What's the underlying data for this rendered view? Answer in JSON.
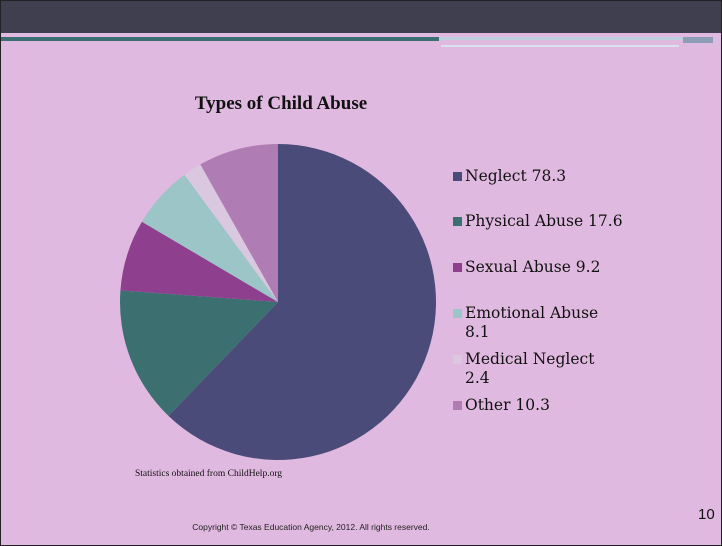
{
  "slide": {
    "title": "Types of Child Abuse",
    "source": "Statistics obtained from ChildHelp.org",
    "copyright": "Copyright © Texas Education Agency, 2012. All rights reserved.",
    "page_number": "10",
    "background_color": "#e0b9e0",
    "header_color": "#3f3f50"
  },
  "chart_data": {
    "type": "pie",
    "title": "Types of Child Abuse",
    "categories": [
      "Neglect",
      "Physical Abuse",
      "Sexual Abuse",
      "Emotional Abuse",
      "Medical Neglect",
      "Other"
    ],
    "values": [
      78.3,
      17.6,
      9.2,
      8.1,
      2.4,
      10.3
    ],
    "labels": [
      "Neglect 78.3",
      "Physical Abuse 17.6",
      "Sexual Abuse 9.2",
      "Emotional Abuse 8.1",
      "Medical Neglect 2.4",
      "Other 10.3"
    ],
    "colors": [
      "#4a4b78",
      "#3b6f70",
      "#8e3f8e",
      "#9cc5c8",
      "#d9c8df",
      "#b07cb4"
    ],
    "legend_position": "right"
  }
}
